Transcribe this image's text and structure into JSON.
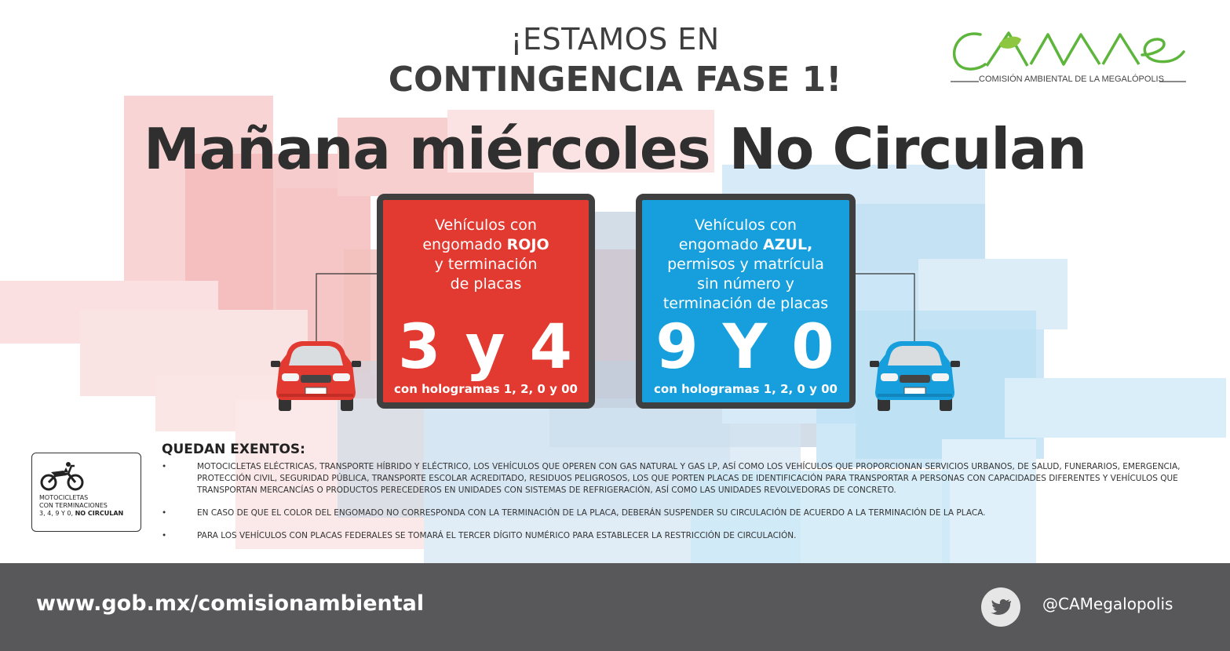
{
  "header": {
    "line1": "¡ESTAMOS EN",
    "line2": "CONTINGENCIA FASE 1!"
  },
  "title": "Mañana miércoles No Circulan",
  "logo": {
    "wordmark": "CAMe",
    "subtitle": "COMISIÓN AMBIENTAL DE LA MEGALÓPOLIS"
  },
  "red_panel": {
    "line1": "Vehículos con",
    "line2_prefix": "engomado ",
    "line2_bold": "ROJO",
    "line3": "y terminación",
    "line4": "de placas",
    "number": "3 y 4",
    "holograms": "con hologramas 1, 2, 0 y 00",
    "color": "#e23a31"
  },
  "blue_panel": {
    "line1": "Vehículos con",
    "line2_prefix": "engomado ",
    "line2_bold": "AZUL,",
    "line3": "permisos y matrícula",
    "line4": "sin número y",
    "line5": "terminación de placas",
    "number": "9 Y 0",
    "holograms": "con hologramas 1, 2, 0 y 00",
    "color": "#169fdc"
  },
  "exempt": {
    "title": "QUEDAN EXENTOS:",
    "items": [
      "MOTOCICLETAS ELÉCTRICAS, TRANSPORTE HÍBRIDO Y ELÉCTRICO, LOS VEHÍCULOS QUE OPEREN CON GAS NATURAL Y GAS LP, ASÍ COMO LOS VEHÍCULOS QUE PROPORCIONAN SERVICIOS URBANOS, DE SALUD, FUNERARIOS, EMERGENCIA, PROTECCIÓN CIVIL, SEGURIDAD PÚBLICA, TRANSPORTE ESCOLAR ACREDITADO, RESIDUOS PELIGROSOS, LOS QUE PORTEN PLACAS DE IDENTIFICACIÓN PARA TRANSPORTAR A PERSONAS CON CAPACIDADES DIFERENTES Y VEHÍCULOS QUE TRANSPORTAN MERCANCÍAS O PRODUCTOS PERECEDEROS EN UNIDADES CON SISTEMAS DE REFRIGERACIÓN, ASÍ COMO LAS UNIDADES REVOLVEDORAS DE CONCRETO.",
      "EN CASO DE QUE EL COLOR DEL ENGOMADO NO CORRESPONDA CON LA TERMINACIÓN DE LA PLACA, DEBERÁN SUSPENDER SU CIRCULACIÓN DE ACUERDO A LA TERMINACIÓN DE LA PLACA.",
      "PARA LOS VEHÍCULOS CON PLACAS FEDERALES SE TOMARÁ EL TERCER DÍGITO NUMÉRICO PARA ESTABLECER LA RESTRICCIÓN DE CIRCULACIÓN."
    ]
  },
  "moto": {
    "line1": "MOTOCICLETAS",
    "line2": "CON TERMINACIONES",
    "line3_prefix": "3, 4, 9 Y 0, ",
    "line3_bold": "NO CIRCULAN"
  },
  "footer": {
    "url": "www.gob.mx/comisionambiental",
    "handle": "@CAMegalopolis",
    "icon": "twitter-icon"
  }
}
